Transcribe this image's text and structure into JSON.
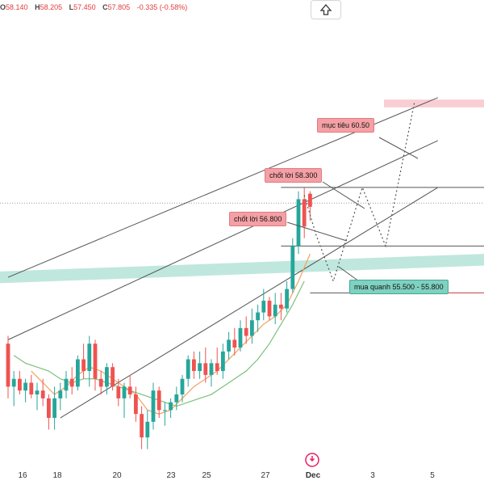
{
  "ohlc": {
    "open_label": "O",
    "open": "58.140",
    "high_label": "H",
    "high": "58.205",
    "low_label": "L",
    "low": "57.450",
    "close_label": "C",
    "close": "57.805",
    "change": "-0.335 (-0.58%)"
  },
  "controls": {
    "up_icon": "arrow-up-icon"
  },
  "annotations": {
    "target": "mục tiêu 60.50",
    "tp2": "chốt lời 58.300",
    "tp1": "chốt lời 56.800",
    "buy": "mua quanh 55.500 - 55.800"
  },
  "colors": {
    "up": "#26a69a",
    "down": "#ef5350",
    "channel": "#555555",
    "ma_fast": "#f0a35e",
    "ma_slow": "#7bc17a",
    "zone": "#a9dfd3",
    "target_zone": "#f7c2c7",
    "projection": "#555555"
  },
  "chart_data": {
    "type": "candlestick",
    "x_labels": [
      "16",
      "18",
      "20",
      "23",
      "25",
      "27",
      "Dec",
      "3",
      "5"
    ],
    "y_range": [
      51.2,
      63.1
    ],
    "candles": [
      [
        54.3,
        54.5,
        52.9,
        53.2
      ],
      [
        53.2,
        53.6,
        52.7,
        53.4
      ],
      [
        53.4,
        53.6,
        53.0,
        53.1
      ],
      [
        53.1,
        53.4,
        52.8,
        53.3
      ],
      [
        53.3,
        53.5,
        52.9,
        53.0
      ],
      [
        53.0,
        53.3,
        52.6,
        53.1
      ],
      [
        53.1,
        53.4,
        52.7,
        52.9
      ],
      [
        52.9,
        53.0,
        52.1,
        52.4
      ],
      [
        52.4,
        53.2,
        52.1,
        52.9
      ],
      [
        52.9,
        53.3,
        52.6,
        53.1
      ],
      [
        53.1,
        53.6,
        52.9,
        53.4
      ],
      [
        53.4,
        53.7,
        53.0,
        53.2
      ],
      [
        53.2,
        54.0,
        53.1,
        53.9
      ],
      [
        53.9,
        54.3,
        53.4,
        53.6
      ],
      [
        53.6,
        54.5,
        53.2,
        54.3
      ],
      [
        54.3,
        54.4,
        53.1,
        53.4
      ],
      [
        53.4,
        53.6,
        53.0,
        53.2
      ],
      [
        53.2,
        53.8,
        53.0,
        53.7
      ],
      [
        53.7,
        53.8,
        53.1,
        53.2
      ],
      [
        53.2,
        53.4,
        52.7,
        52.9
      ],
      [
        52.9,
        53.3,
        52.4,
        53.2
      ],
      [
        53.2,
        53.5,
        52.9,
        53.0
      ],
      [
        53.0,
        53.2,
        52.3,
        52.5
      ],
      [
        52.5,
        52.7,
        51.6,
        51.9
      ],
      [
        51.9,
        52.6,
        51.6,
        52.3
      ],
      [
        52.3,
        53.3,
        52.1,
        53.1
      ],
      [
        53.1,
        53.2,
        52.4,
        52.6
      ],
      [
        52.6,
        52.8,
        52.2,
        52.6
      ],
      [
        52.6,
        52.9,
        52.4,
        52.8
      ],
      [
        52.8,
        53.2,
        52.6,
        53.0
      ],
      [
        53.0,
        53.5,
        52.8,
        53.4
      ],
      [
        53.4,
        54.0,
        53.2,
        53.9
      ],
      [
        53.9,
        54.1,
        53.4,
        53.6
      ],
      [
        53.6,
        54.1,
        53.4,
        53.8
      ],
      [
        53.8,
        54.2,
        53.3,
        53.5
      ],
      [
        53.5,
        53.9,
        53.2,
        53.8
      ],
      [
        53.8,
        54.2,
        53.5,
        53.6
      ],
      [
        53.6,
        54.3,
        53.4,
        54.1
      ],
      [
        54.1,
        54.6,
        53.9,
        54.4
      ],
      [
        54.4,
        54.7,
        54.0,
        54.2
      ],
      [
        54.2,
        54.9,
        54.1,
        54.7
      ],
      [
        54.7,
        55.0,
        54.3,
        54.5
      ],
      [
        54.5,
        55.2,
        54.3,
        54.9
      ],
      [
        54.9,
        55.3,
        54.6,
        55.1
      ],
      [
        55.1,
        55.7,
        54.9,
        55.4
      ],
      [
        55.4,
        55.5,
        54.9,
        55.0
      ],
      [
        55.0,
        55.6,
        54.8,
        55.3
      ],
      [
        55.3,
        55.6,
        54.9,
        55.2
      ],
      [
        55.2,
        55.9,
        55.1,
        55.7
      ],
      [
        55.7,
        57.0,
        55.6,
        56.8
      ],
      [
        56.8,
        58.2,
        56.6,
        58.0
      ],
      [
        58.0,
        58.3,
        57.0,
        57.3
      ],
      [
        58.14,
        58.205,
        57.45,
        57.805
      ]
    ],
    "ma_fast": [
      [
        4,
        53.6
      ],
      [
        6,
        53.3
      ],
      [
        8,
        53.0
      ],
      [
        10,
        53.2
      ],
      [
        12,
        53.5
      ],
      [
        14,
        53.7
      ],
      [
        16,
        53.6
      ],
      [
        18,
        53.4
      ],
      [
        20,
        53.2
      ],
      [
        22,
        53.0
      ],
      [
        24,
        52.6
      ],
      [
        26,
        52.5
      ],
      [
        28,
        52.6
      ],
      [
        30,
        52.9
      ],
      [
        32,
        53.2
      ],
      [
        34,
        53.4
      ],
      [
        36,
        53.6
      ],
      [
        38,
        53.9
      ],
      [
        40,
        54.2
      ],
      [
        42,
        54.5
      ],
      [
        44,
        54.8
      ],
      [
        46,
        55.0
      ],
      [
        48,
        55.3
      ],
      [
        50,
        55.9
      ],
      [
        52,
        56.6
      ]
    ],
    "ma_slow": [
      [
        1,
        54.0
      ],
      [
        3,
        53.8
      ],
      [
        5,
        53.7
      ],
      [
        7,
        53.6
      ],
      [
        9,
        53.4
      ],
      [
        11,
        53.3
      ],
      [
        13,
        53.4
      ],
      [
        15,
        53.4
      ],
      [
        17,
        53.3
      ],
      [
        19,
        53.2
      ],
      [
        21,
        53.1
      ],
      [
        23,
        53.0
      ],
      [
        25,
        52.9
      ],
      [
        27,
        52.8
      ],
      [
        29,
        52.7
      ],
      [
        31,
        52.8
      ],
      [
        33,
        52.9
      ],
      [
        35,
        53.0
      ],
      [
        37,
        53.2
      ],
      [
        39,
        53.4
      ],
      [
        41,
        53.6
      ],
      [
        43,
        53.9
      ],
      [
        45,
        54.3
      ],
      [
        47,
        54.8
      ],
      [
        49,
        55.3
      ],
      [
        51,
        55.9
      ]
    ],
    "channel_lines": [
      {
        "name": "channel-upper-outer",
        "from": [
          0,
          56.0
        ],
        "to": [
          74,
          60.6
        ]
      },
      {
        "name": "channel-upper-inner",
        "from": [
          0,
          54.4
        ],
        "to": [
          74,
          59.5
        ]
      },
      {
        "name": "channel-lower",
        "from": [
          9,
          52.4
        ],
        "to": [
          74,
          58.3
        ]
      }
    ],
    "level_lines": [
      58.3,
      56.8
    ],
    "level_lines_x": [
      47,
      74
    ],
    "resistance_line": [
      52,
      55.6,
      74,
      55.6
    ],
    "buy_zone": {
      "y1_start": 56.15,
      "y2_start": 55.85,
      "y1_end": 56.6,
      "y2_end": 56.3
    },
    "target_zone": [
      60.55,
      60.35
    ],
    "projection_path": [
      [
        51,
        58.1
      ],
      [
        53,
        57.1
      ],
      [
        56,
        55.9
      ],
      [
        61,
        58.3
      ],
      [
        65,
        56.8
      ],
      [
        70,
        60.5
      ]
    ],
    "ref_line": 57.9
  }
}
